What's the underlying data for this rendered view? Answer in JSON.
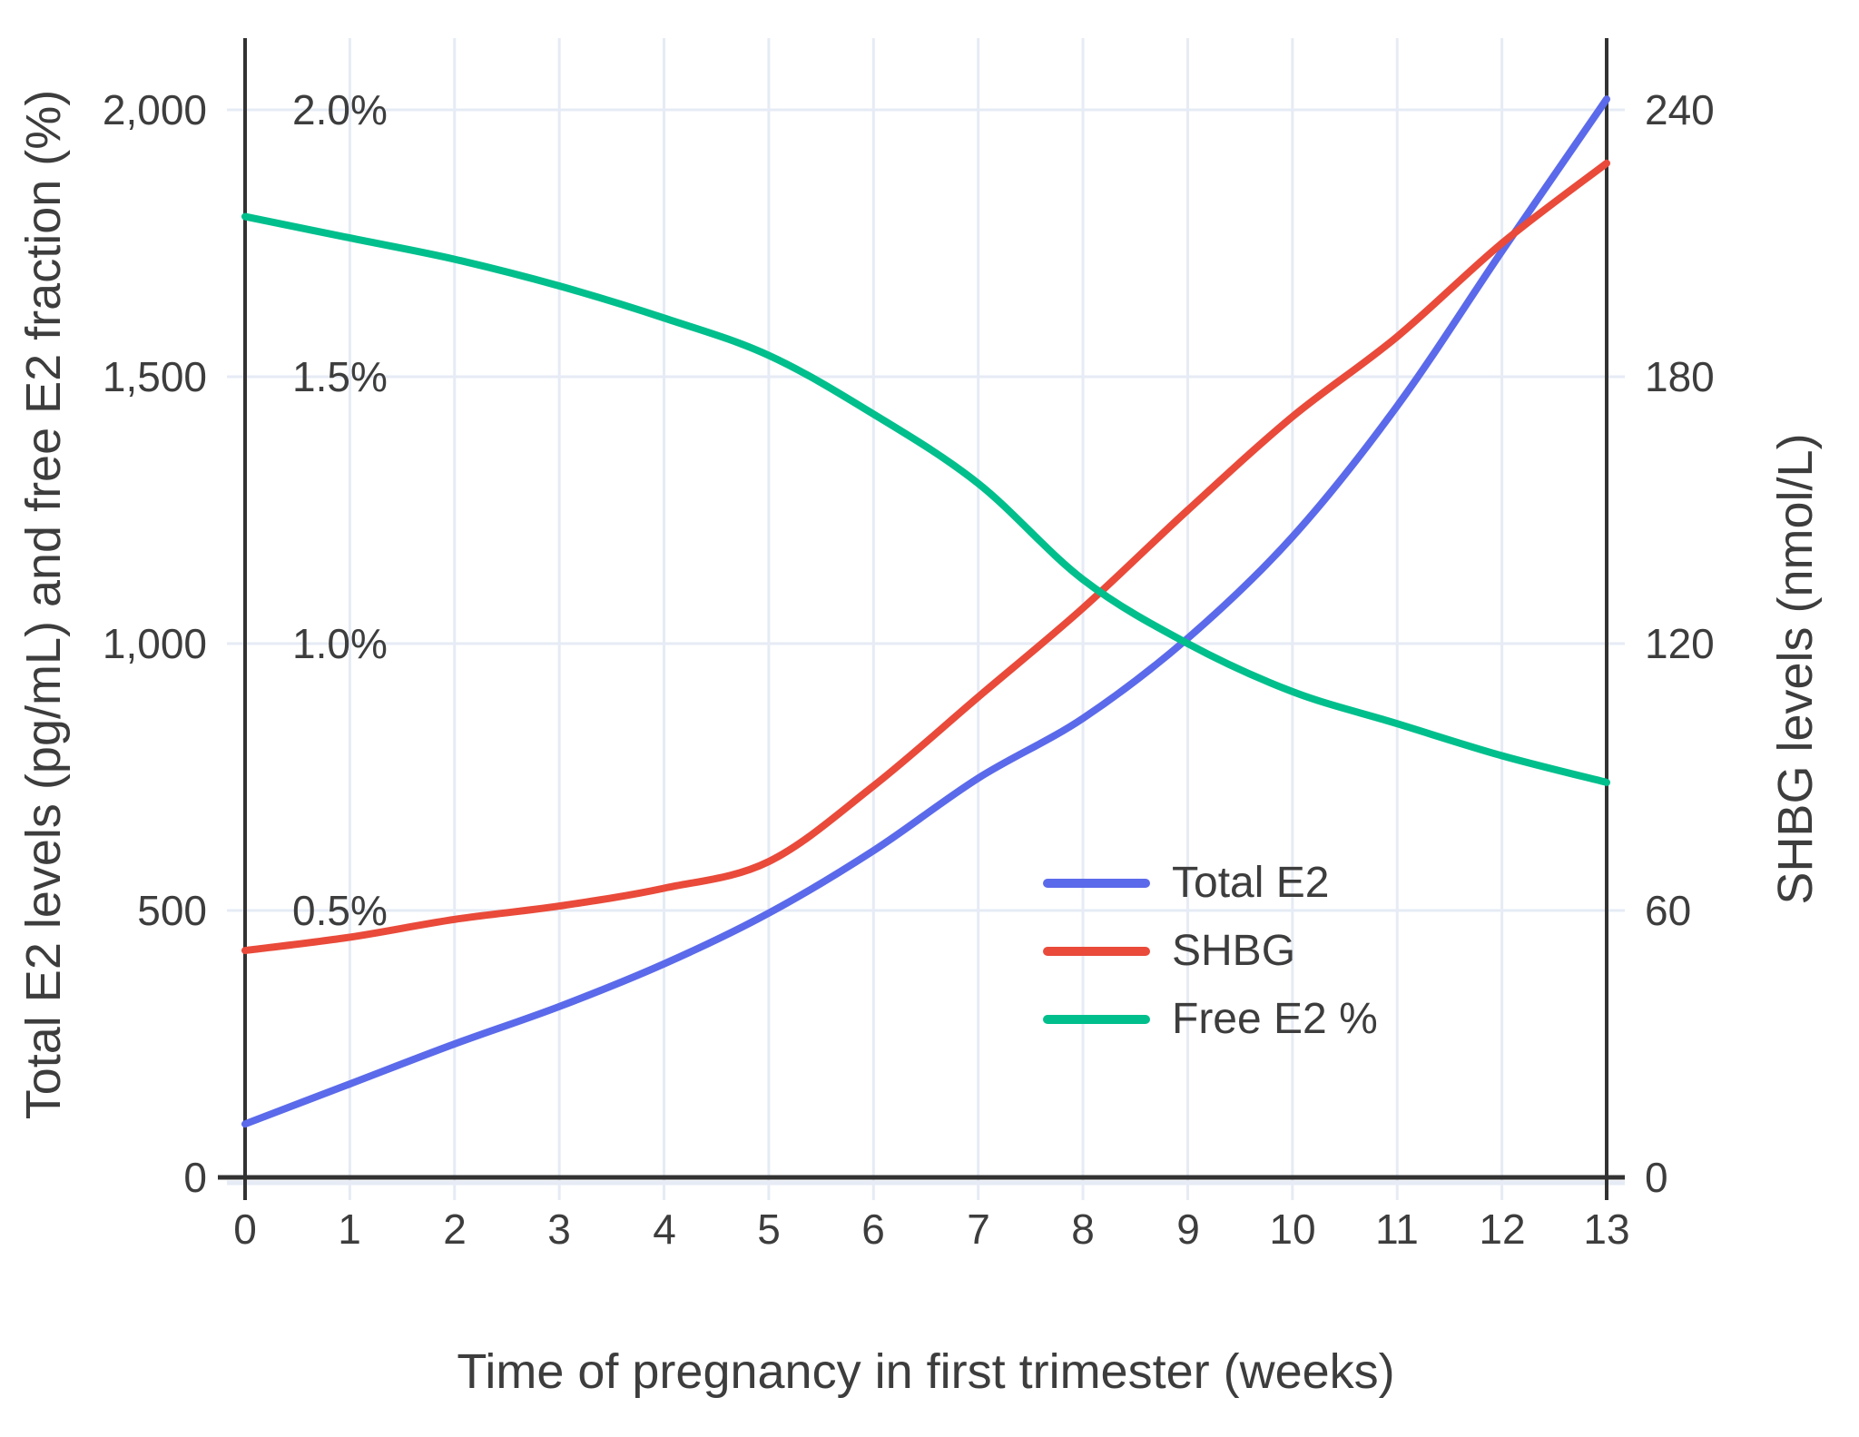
{
  "chart_data": {
    "type": "line",
    "xlabel": "Time of pregnancy in first trimester (weeks)",
    "ylabel_left": "Total E2 levels (pg/mL) and free E2 fraction (%)",
    "ylabel_right": "SHBG levels (nmol/L)",
    "x": [
      0,
      1,
      2,
      3,
      4,
      5,
      6,
      7,
      8,
      9,
      10,
      11,
      12,
      13
    ],
    "x_ticks": [
      "0",
      "1",
      "2",
      "3",
      "4",
      "5",
      "6",
      "7",
      "8",
      "9",
      "10",
      "11",
      "12",
      "13"
    ],
    "y_ticks_left": [
      "0",
      "500",
      "1,000",
      "1,500",
      "2,000"
    ],
    "y_ticks_left_pct": [
      "0.5%",
      "1.0%",
      "1.5%",
      "2.0%"
    ],
    "y_ticks_right": [
      "0",
      "60",
      "120",
      "180",
      "240"
    ],
    "ylim_left": [
      0,
      2000
    ],
    "ylim_left_pct": [
      0,
      2.0
    ],
    "ylim_right": [
      0,
      240
    ],
    "xlim": [
      0,
      13
    ],
    "grid": true,
    "legend_position": "inside lower-right",
    "series": [
      {
        "name": "Total E2",
        "axis": "left",
        "units": "pg/mL",
        "color": "#5b6aea",
        "values": [
          100,
          175,
          250,
          320,
          400,
          495,
          612,
          748,
          860,
          1010,
          1200,
          1445,
          1735,
          2020
        ]
      },
      {
        "name": "SHBG",
        "axis": "right",
        "units": "nmol/L",
        "color": "#e94a3a",
        "values": [
          51,
          54,
          58,
          61,
          65,
          71,
          88,
          108,
          128,
          150,
          171,
          189,
          210,
          228
        ]
      },
      {
        "name": "Free E2 %",
        "axis": "left_pct",
        "units": "%",
        "color": "#00bf8c",
        "values": [
          1.8,
          1.76,
          1.72,
          1.67,
          1.61,
          1.54,
          1.43,
          1.3,
          1.12,
          1.0,
          0.91,
          0.85,
          0.79,
          0.74
        ]
      }
    ],
    "legend": [
      "Total E2",
      "SHBG",
      "Free E2 %"
    ]
  },
  "colors": {
    "background": "#ffffff",
    "gridline": "#e6ebf5",
    "axis_line": "#323232",
    "text": "#3d3d3d",
    "total_e2": "#5b6aea",
    "shbg": "#e94a3a",
    "free_e2": "#00bf8c"
  }
}
